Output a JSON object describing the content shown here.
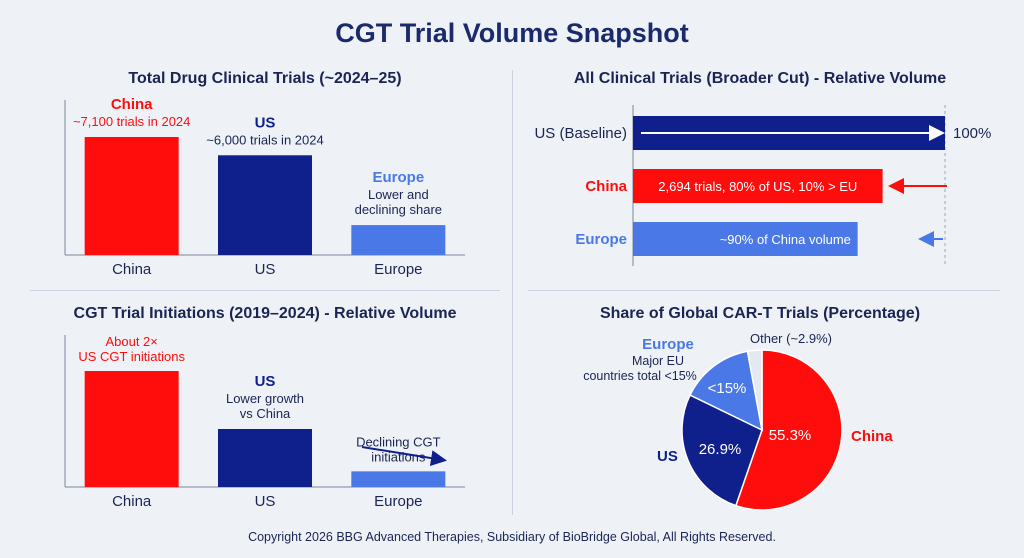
{
  "title": "CGT Trial Volume Snapshot",
  "copyright": "Copyright 2026 BBG Advanced Therapies, Subsidiary of BioBridge Global, All Rights Reserved.",
  "colors": {
    "china": "#ff0d0d",
    "us": "#0f1f8c",
    "europe": "#4a78e6",
    "text": "#1b2452"
  },
  "chart_data": [
    {
      "type": "bar",
      "title": "Total Drug Clinical Trials (~2024–25)",
      "categories": [
        "China",
        "US",
        "Europe"
      ],
      "values": [
        7100,
        6000,
        1800
      ],
      "annotations": [
        {
          "category": "China",
          "heading": "China",
          "lines": [
            "~7,100 trials in 2024"
          ]
        },
        {
          "category": "US",
          "heading": "US",
          "lines": [
            "~6,000 trials in 2024"
          ]
        },
        {
          "category": "Europe",
          "heading": "Europe",
          "lines": [
            "Lower and",
            "declining share"
          ]
        }
      ]
    },
    {
      "type": "bar",
      "orientation": "horizontal",
      "title": "All Clinical Trials (Broader Cut) - Relative Volume",
      "categories": [
        "US (Baseline)",
        "China",
        "Europe"
      ],
      "values": [
        100,
        80,
        72
      ],
      "value_label": "100%",
      "bar_labels": [
        "",
        "2,694 trials, 80% of US, 10% > EU",
        "~90% of China volume"
      ]
    },
    {
      "type": "bar",
      "title": "CGT Trial Initiations (2019–2024) - Relative Volume",
      "categories": [
        "China",
        "US",
        "Europe"
      ],
      "values": [
        2,
        1,
        0.27
      ],
      "annotations": [
        {
          "category": "China",
          "heading": "",
          "lines": [
            "About 2×",
            "US CGT initiations"
          ]
        },
        {
          "category": "US",
          "heading": "US",
          "lines": [
            "Lower growth",
            "vs China"
          ]
        },
        {
          "category": "Europe",
          "heading": "",
          "lines": [
            "Declining CGT",
            "initiations"
          ]
        }
      ]
    },
    {
      "type": "pie",
      "title": "Share of Global CAR-T Trials (Percentage)",
      "slices": [
        {
          "name": "China",
          "value": 55.3,
          "label": "55.3%"
        },
        {
          "name": "US",
          "value": 26.9,
          "label": "26.9%"
        },
        {
          "name": "Europe",
          "value": 14.9,
          "label": "<15%",
          "note": [
            "Major EU",
            "countries total <15%"
          ]
        },
        {
          "name": "Other",
          "value": 2.9,
          "label": "Other (~2.9%)"
        }
      ]
    }
  ]
}
